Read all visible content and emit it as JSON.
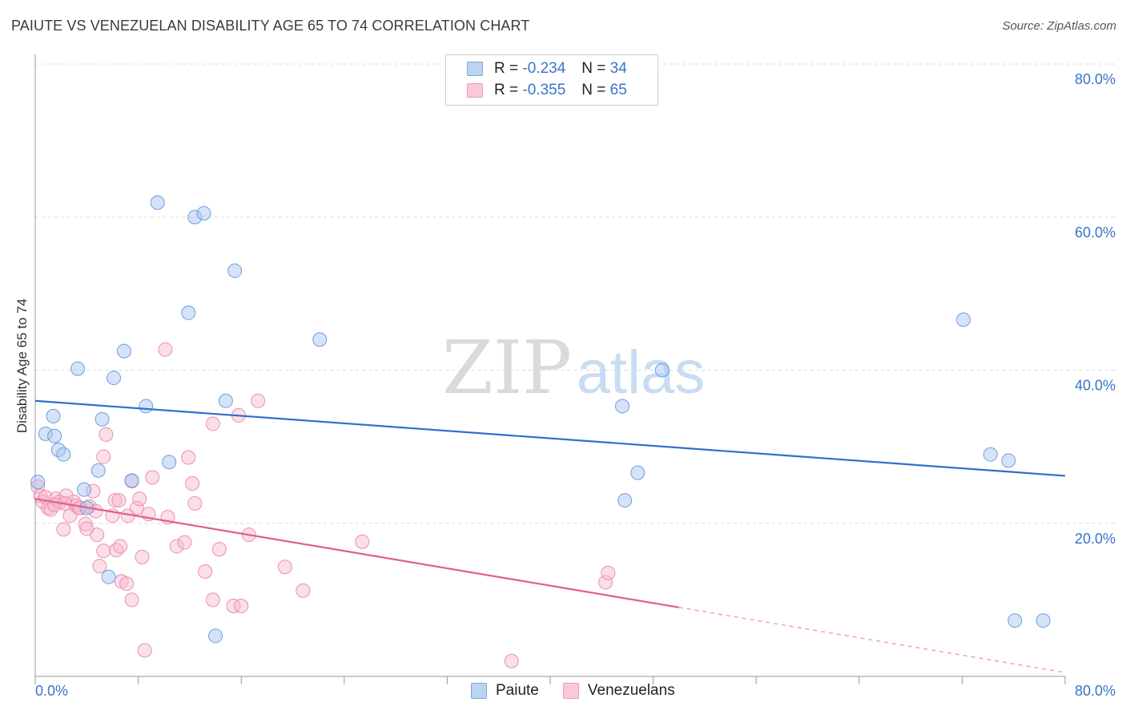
{
  "header": {
    "title": "PAIUTE VS VENEZUELAN DISABILITY AGE 65 TO 74 CORRELATION CHART",
    "source": "Source: ZipAtlas.com"
  },
  "watermark": {
    "zip": "ZIP",
    "atlas": "atlas"
  },
  "legend": {
    "rows": [
      {
        "r_label": "R = ",
        "r_value": "-0.234",
        "n_label": "N = ",
        "n_value": "34"
      },
      {
        "r_label": "R = ",
        "r_value": "-0.355",
        "n_label": "N = ",
        "n_value": "65"
      }
    ]
  },
  "bottom_legend": {
    "paiute": "Paiute",
    "venezuelans": "Venezuelans"
  },
  "colors": {
    "paiute_fill": "#a9c8f0",
    "paiute_stroke": "#6f9fdc",
    "paiute_line": "#2f6fcc",
    "venez_fill": "#f7b9cc",
    "venez_stroke": "#ec8fac",
    "venez_line": "#e05f8e",
    "axis_text": "#3a73c8",
    "grid": "#dcdcdc"
  },
  "chart_data": {
    "type": "scatter",
    "title": "PAIUTE VS VENEZUELAN DISABILITY AGE 65 TO 74 CORRELATION CHART",
    "xlabel": "",
    "ylabel": "Disability Age 65 to 74",
    "xlim": [
      0,
      80
    ],
    "ylim": [
      0,
      80
    ],
    "x_tick_labels": [
      "0.0%",
      "80.0%"
    ],
    "y_ticks": [
      20,
      40,
      60,
      80
    ],
    "y_tick_labels": [
      "20.0%",
      "40.0%",
      "60.0%",
      "80.0%"
    ],
    "series": [
      {
        "name": "Paiute",
        "r": -0.234,
        "n": 34,
        "trend": {
          "x": [
            0,
            80
          ],
          "y": [
            36.0,
            26.2
          ],
          "dashed_from": null
        },
        "points": [
          [
            0.2,
            25.4
          ],
          [
            0.8,
            31.7
          ],
          [
            1.4,
            34.0
          ],
          [
            1.5,
            31.4
          ],
          [
            1.8,
            29.6
          ],
          [
            2.2,
            29.0
          ],
          [
            3.3,
            40.2
          ],
          [
            3.8,
            24.4
          ],
          [
            4.0,
            22.0
          ],
          [
            4.9,
            26.9
          ],
          [
            5.2,
            33.6
          ],
          [
            6.1,
            39.0
          ],
          [
            6.9,
            42.5
          ],
          [
            5.7,
            13.0
          ],
          [
            7.5,
            25.6
          ],
          [
            8.6,
            35.3
          ],
          [
            9.5,
            61.9
          ],
          [
            10.4,
            28.0
          ],
          [
            11.9,
            47.5
          ],
          [
            12.4,
            60.0
          ],
          [
            13.1,
            60.5
          ],
          [
            14.0,
            5.3
          ],
          [
            14.8,
            36.0
          ],
          [
            15.5,
            53.0
          ],
          [
            22.1,
            44.0
          ],
          [
            45.6,
            35.3
          ],
          [
            45.8,
            23.0
          ],
          [
            46.8,
            26.6
          ],
          [
            48.7,
            40.0
          ],
          [
            72.1,
            46.6
          ],
          [
            74.2,
            29.0
          ],
          [
            75.6,
            28.2
          ],
          [
            76.1,
            7.3
          ],
          [
            78.3,
            7.3
          ]
        ]
      },
      {
        "name": "Venezuelans",
        "r": -0.355,
        "n": 65,
        "trend": {
          "x": [
            0,
            80
          ],
          "y": [
            23.2,
            0.5
          ],
          "dashed_from": 50
        },
        "points": [
          [
            0.2,
            24.8
          ],
          [
            0.4,
            23.6
          ],
          [
            0.6,
            22.8
          ],
          [
            0.8,
            23.4
          ],
          [
            1.0,
            22.0
          ],
          [
            1.2,
            21.8
          ],
          [
            1.6,
            23.2
          ],
          [
            1.9,
            22.8
          ],
          [
            2.2,
            19.2
          ],
          [
            2.4,
            23.6
          ],
          [
            2.7,
            21.0
          ],
          [
            3.0,
            22.8
          ],
          [
            3.2,
            22.3
          ],
          [
            3.5,
            22.0
          ],
          [
            3.9,
            19.9
          ],
          [
            4.0,
            19.3
          ],
          [
            4.2,
            22.2
          ],
          [
            4.5,
            24.2
          ],
          [
            4.7,
            21.6
          ],
          [
            4.8,
            18.5
          ],
          [
            5.0,
            14.4
          ],
          [
            5.3,
            28.7
          ],
          [
            5.3,
            16.4
          ],
          [
            5.5,
            31.6
          ],
          [
            6.0,
            21.0
          ],
          [
            6.2,
            23.0
          ],
          [
            6.3,
            16.5
          ],
          [
            6.5,
            23.0
          ],
          [
            6.6,
            17.0
          ],
          [
            6.7,
            12.4
          ],
          [
            7.2,
            21.0
          ],
          [
            7.1,
            12.1
          ],
          [
            7.5,
            25.5
          ],
          [
            7.5,
            10.0
          ],
          [
            7.9,
            22.0
          ],
          [
            8.1,
            23.2
          ],
          [
            8.3,
            15.6
          ],
          [
            8.5,
            3.4
          ],
          [
            8.8,
            21.2
          ],
          [
            9.1,
            26.0
          ],
          [
            10.1,
            42.7
          ],
          [
            10.3,
            20.8
          ],
          [
            11.0,
            17.0
          ],
          [
            11.6,
            17.5
          ],
          [
            11.9,
            28.6
          ],
          [
            12.2,
            25.2
          ],
          [
            12.4,
            22.6
          ],
          [
            13.2,
            13.7
          ],
          [
            13.8,
            33.0
          ],
          [
            13.8,
            10.0
          ],
          [
            14.3,
            16.6
          ],
          [
            15.4,
            9.2
          ],
          [
            15.8,
            34.1
          ],
          [
            16.0,
            9.2
          ],
          [
            16.6,
            18.5
          ],
          [
            17.3,
            36.0
          ],
          [
            19.4,
            14.3
          ],
          [
            20.8,
            11.2
          ],
          [
            25.4,
            17.6
          ],
          [
            37.0,
            2.0
          ],
          [
            44.3,
            12.3
          ],
          [
            44.5,
            13.5
          ],
          [
            1.5,
            22.4
          ],
          [
            3.4,
            22.0
          ],
          [
            2.3,
            22.6
          ]
        ]
      }
    ]
  }
}
